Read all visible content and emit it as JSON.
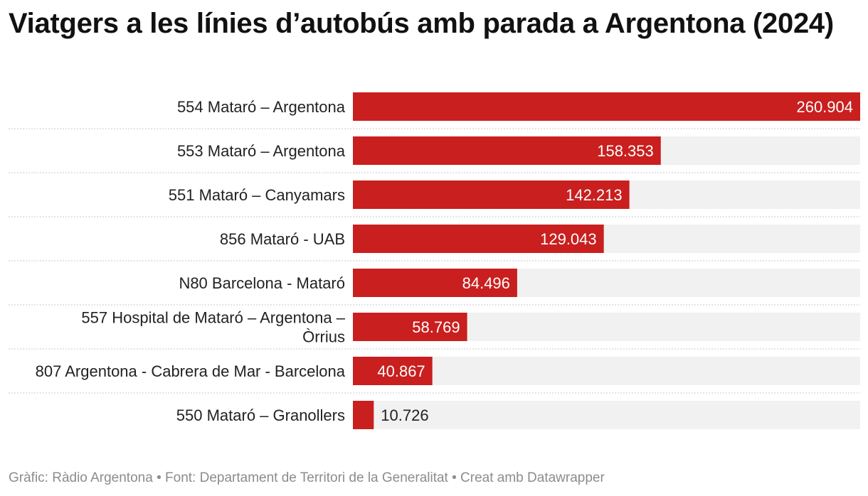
{
  "title": "Viatgers a les línies d’autobús amb parada a Argentona (2024)",
  "footer": {
    "credit_label": "Gràfic:",
    "credit_value": "Ràdio Argentona",
    "source_label": "Font:",
    "source_value": "Departament de Territori de la Generalitat",
    "tool_text": "Creat amb Datawrapper",
    "separator": "•"
  },
  "colors": {
    "bar": "#c91f1f",
    "track": "#f1f1f1",
    "label_inside": "#ffffff",
    "label_outside": "#222222",
    "divider": "#c8c8c8"
  },
  "chart_data": {
    "type": "bar",
    "orientation": "horizontal",
    "title": "Viatgers a les línies d’autobús amb parada a Argentona (2024)",
    "xlabel": "",
    "ylabel": "",
    "xlim": [
      0,
      260904
    ],
    "grid": false,
    "legend": "none",
    "categories": [
      [
        "554 Mataró – Argentona"
      ],
      [
        "553 Mataró – Argentona"
      ],
      [
        "551 Mataró – Canyamars"
      ],
      [
        "856 Mataró - UAB"
      ],
      [
        "N80 Barcelona - Mataró"
      ],
      [
        "557 Hospital de Mataró – Argentona –",
        "Òrrius"
      ],
      [
        "807 Argentona - Cabrera de Mar - Barcelona"
      ],
      [
        "550 Mataró – Granollers"
      ]
    ],
    "values": [
      260904,
      158353,
      142213,
      129043,
      84496,
      58769,
      40867,
      10726
    ],
    "value_labels": [
      "260.904",
      "158.353",
      "142.213",
      "129.043",
      "84.496",
      "58.769",
      "40.867",
      "10.726"
    ]
  }
}
